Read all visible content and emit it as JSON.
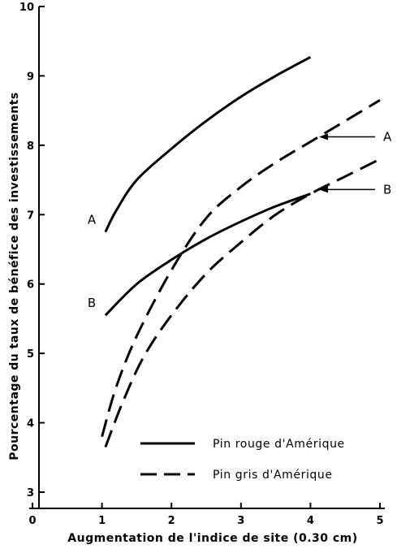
{
  "chart_data": {
    "type": "line",
    "xlabel": "Augmentation de l'indice de site (0.30 cm)",
    "ylabel": "Pourcentage du taux de bénéfice des investissements",
    "xlim": [
      0,
      5
    ],
    "ylim": [
      3,
      10
    ],
    "x_ticks": [
      "0",
      "1",
      "2",
      "3",
      "4",
      "5"
    ],
    "y_ticks": [
      "3",
      "4",
      "5",
      "6",
      "7",
      "8",
      "9",
      "10"
    ],
    "grid": false,
    "legend_position": "bottom-right",
    "series": [
      {
        "name": "Pin rouge d'Amérique",
        "style": "solid",
        "curve": "A",
        "x": [
          1.05,
          1.2,
          1.5,
          2.0,
          2.5,
          3.0,
          3.5,
          4.0
        ],
        "y": [
          6.75,
          7.05,
          7.5,
          7.95,
          8.35,
          8.7,
          9.0,
          9.27
        ]
      },
      {
        "name": "Pin rouge d'Amérique",
        "style": "solid",
        "curve": "B",
        "x": [
          1.05,
          1.5,
          2.0,
          2.5,
          3.0,
          3.5,
          4.0
        ],
        "y": [
          5.55,
          6.0,
          6.35,
          6.65,
          6.9,
          7.12,
          7.3
        ]
      },
      {
        "name": "Pin gris d'Amérique",
        "style": "dashed",
        "curve": "A",
        "x": [
          1.0,
          1.2,
          1.5,
          2.0,
          2.5,
          3.0,
          3.5,
          4.0,
          4.5,
          5.0
        ],
        "y": [
          3.8,
          4.5,
          5.25,
          6.2,
          6.95,
          7.4,
          7.75,
          8.05,
          8.35,
          8.65
        ]
      },
      {
        "name": "Pin gris d'Amérique",
        "style": "dashed",
        "curve": "B",
        "x": [
          1.05,
          1.3,
          1.6,
          2.0,
          2.5,
          3.0,
          3.5,
          4.0,
          4.5,
          5.0
        ],
        "y": [
          3.65,
          4.3,
          4.95,
          5.55,
          6.15,
          6.6,
          7.0,
          7.3,
          7.55,
          7.8
        ]
      }
    ],
    "curve_labels": [
      "A",
      "B",
      "A",
      "B"
    ],
    "legend": [
      {
        "label": "Pin rouge d'Amérique",
        "style": "solid"
      },
      {
        "label": "Pin gris d'Amérique",
        "style": "dashed"
      }
    ]
  }
}
